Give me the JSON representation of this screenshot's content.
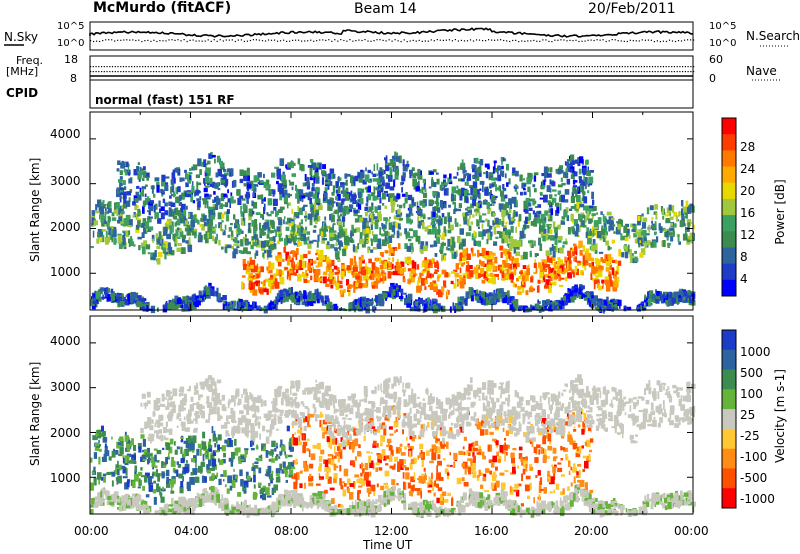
{
  "header": {
    "station": "McMurdo (fitACF)",
    "beam": "Beam 14",
    "date": "20/Feb/2011"
  },
  "panels": {
    "nsky": {
      "left_label": "N.Sky",
      "right_label": "N.Search",
      "left_ticks": [
        "10^5",
        "10^0"
      ],
      "right_ticks": [
        "10^5",
        "10^0"
      ]
    },
    "freq": {
      "left_label_1": "Freq.",
      "left_label_2": "[MHz]",
      "right_label": "Nave",
      "left_ticks": [
        "18",
        "8"
      ],
      "right_ticks": [
        "60",
        "0"
      ]
    },
    "cpid": {
      "label": "CPID",
      "mode": "normal (fast) 151 RF"
    }
  },
  "chart_data": [
    {
      "type": "heatmap",
      "name": "power",
      "ylabel": "Slant Range [km]",
      "yticks": [
        "4000",
        "3000",
        "2000",
        "1000"
      ],
      "ylim": [
        180,
        4600
      ],
      "xlim": [
        0,
        24
      ],
      "colorbar": {
        "label": "Power [dB]",
        "ticks": [
          "28",
          "24",
          "20",
          "16",
          "12",
          "8",
          "4"
        ],
        "colors": [
          "#ff0000",
          "#ff3c00",
          "#ff7800",
          "#ffaa00",
          "#e8d800",
          "#a0c83c",
          "#3ca060",
          "#3c8c50",
          "#2d64a0",
          "#1e3cc8",
          "#0000ff"
        ]
      },
      "bands": [
        {
          "name": "near-range",
          "x": [
            0,
            24
          ],
          "range_km": [
            220,
            450
          ],
          "value": 6
        },
        {
          "name": "main-echo",
          "x": [
            6,
            21
          ],
          "range_km": [
            700,
            1400
          ],
          "value": 24
        },
        {
          "name": "mid-echo",
          "x": [
            0,
            24
          ],
          "range_km": [
            1500,
            2400
          ],
          "value": 12
        },
        {
          "name": "far-echo",
          "x": [
            1,
            20
          ],
          "range_km": [
            2400,
            3400
          ],
          "value": 8
        }
      ]
    },
    {
      "type": "heatmap",
      "name": "velocity",
      "ylabel": "Slant Range [km]",
      "yticks": [
        "4000",
        "3000",
        "2000",
        "1000"
      ],
      "ylim": [
        180,
        4600
      ],
      "xlim": [
        0,
        24
      ],
      "colorbar": {
        "label": "Velocity [m s-1]",
        "ticks": [
          "1000",
          "500",
          "100",
          "25",
          "-25",
          "-100",
          "-500",
          "-1000"
        ],
        "colors": [
          "#1a3cc8",
          "#2d64a0",
          "#3c8c50",
          "#64b43c",
          "#c8c8be",
          "#ffc832",
          "#ff8c14",
          "#ff5000",
          "#ff0000"
        ]
      },
      "bands": [
        {
          "name": "near-range",
          "x": [
            0,
            24
          ],
          "range_km": [
            220,
            500
          ],
          "value": 50
        },
        {
          "name": "green-echo",
          "x": [
            0,
            8
          ],
          "range_km": [
            700,
            1900
          ],
          "value": 300
        },
        {
          "name": "orange-echo",
          "x": [
            8,
            20
          ],
          "range_km": [
            600,
            2300
          ],
          "value": -300
        },
        {
          "name": "gray-echo",
          "x": [
            2,
            24
          ],
          "range_km": [
            2000,
            3000
          ],
          "value": 0
        }
      ]
    }
  ],
  "xaxis": {
    "ticks": [
      "00:00",
      "04:00",
      "08:00",
      "12:00",
      "16:00",
      "20:00",
      "00:00"
    ],
    "label": "Time UT"
  }
}
